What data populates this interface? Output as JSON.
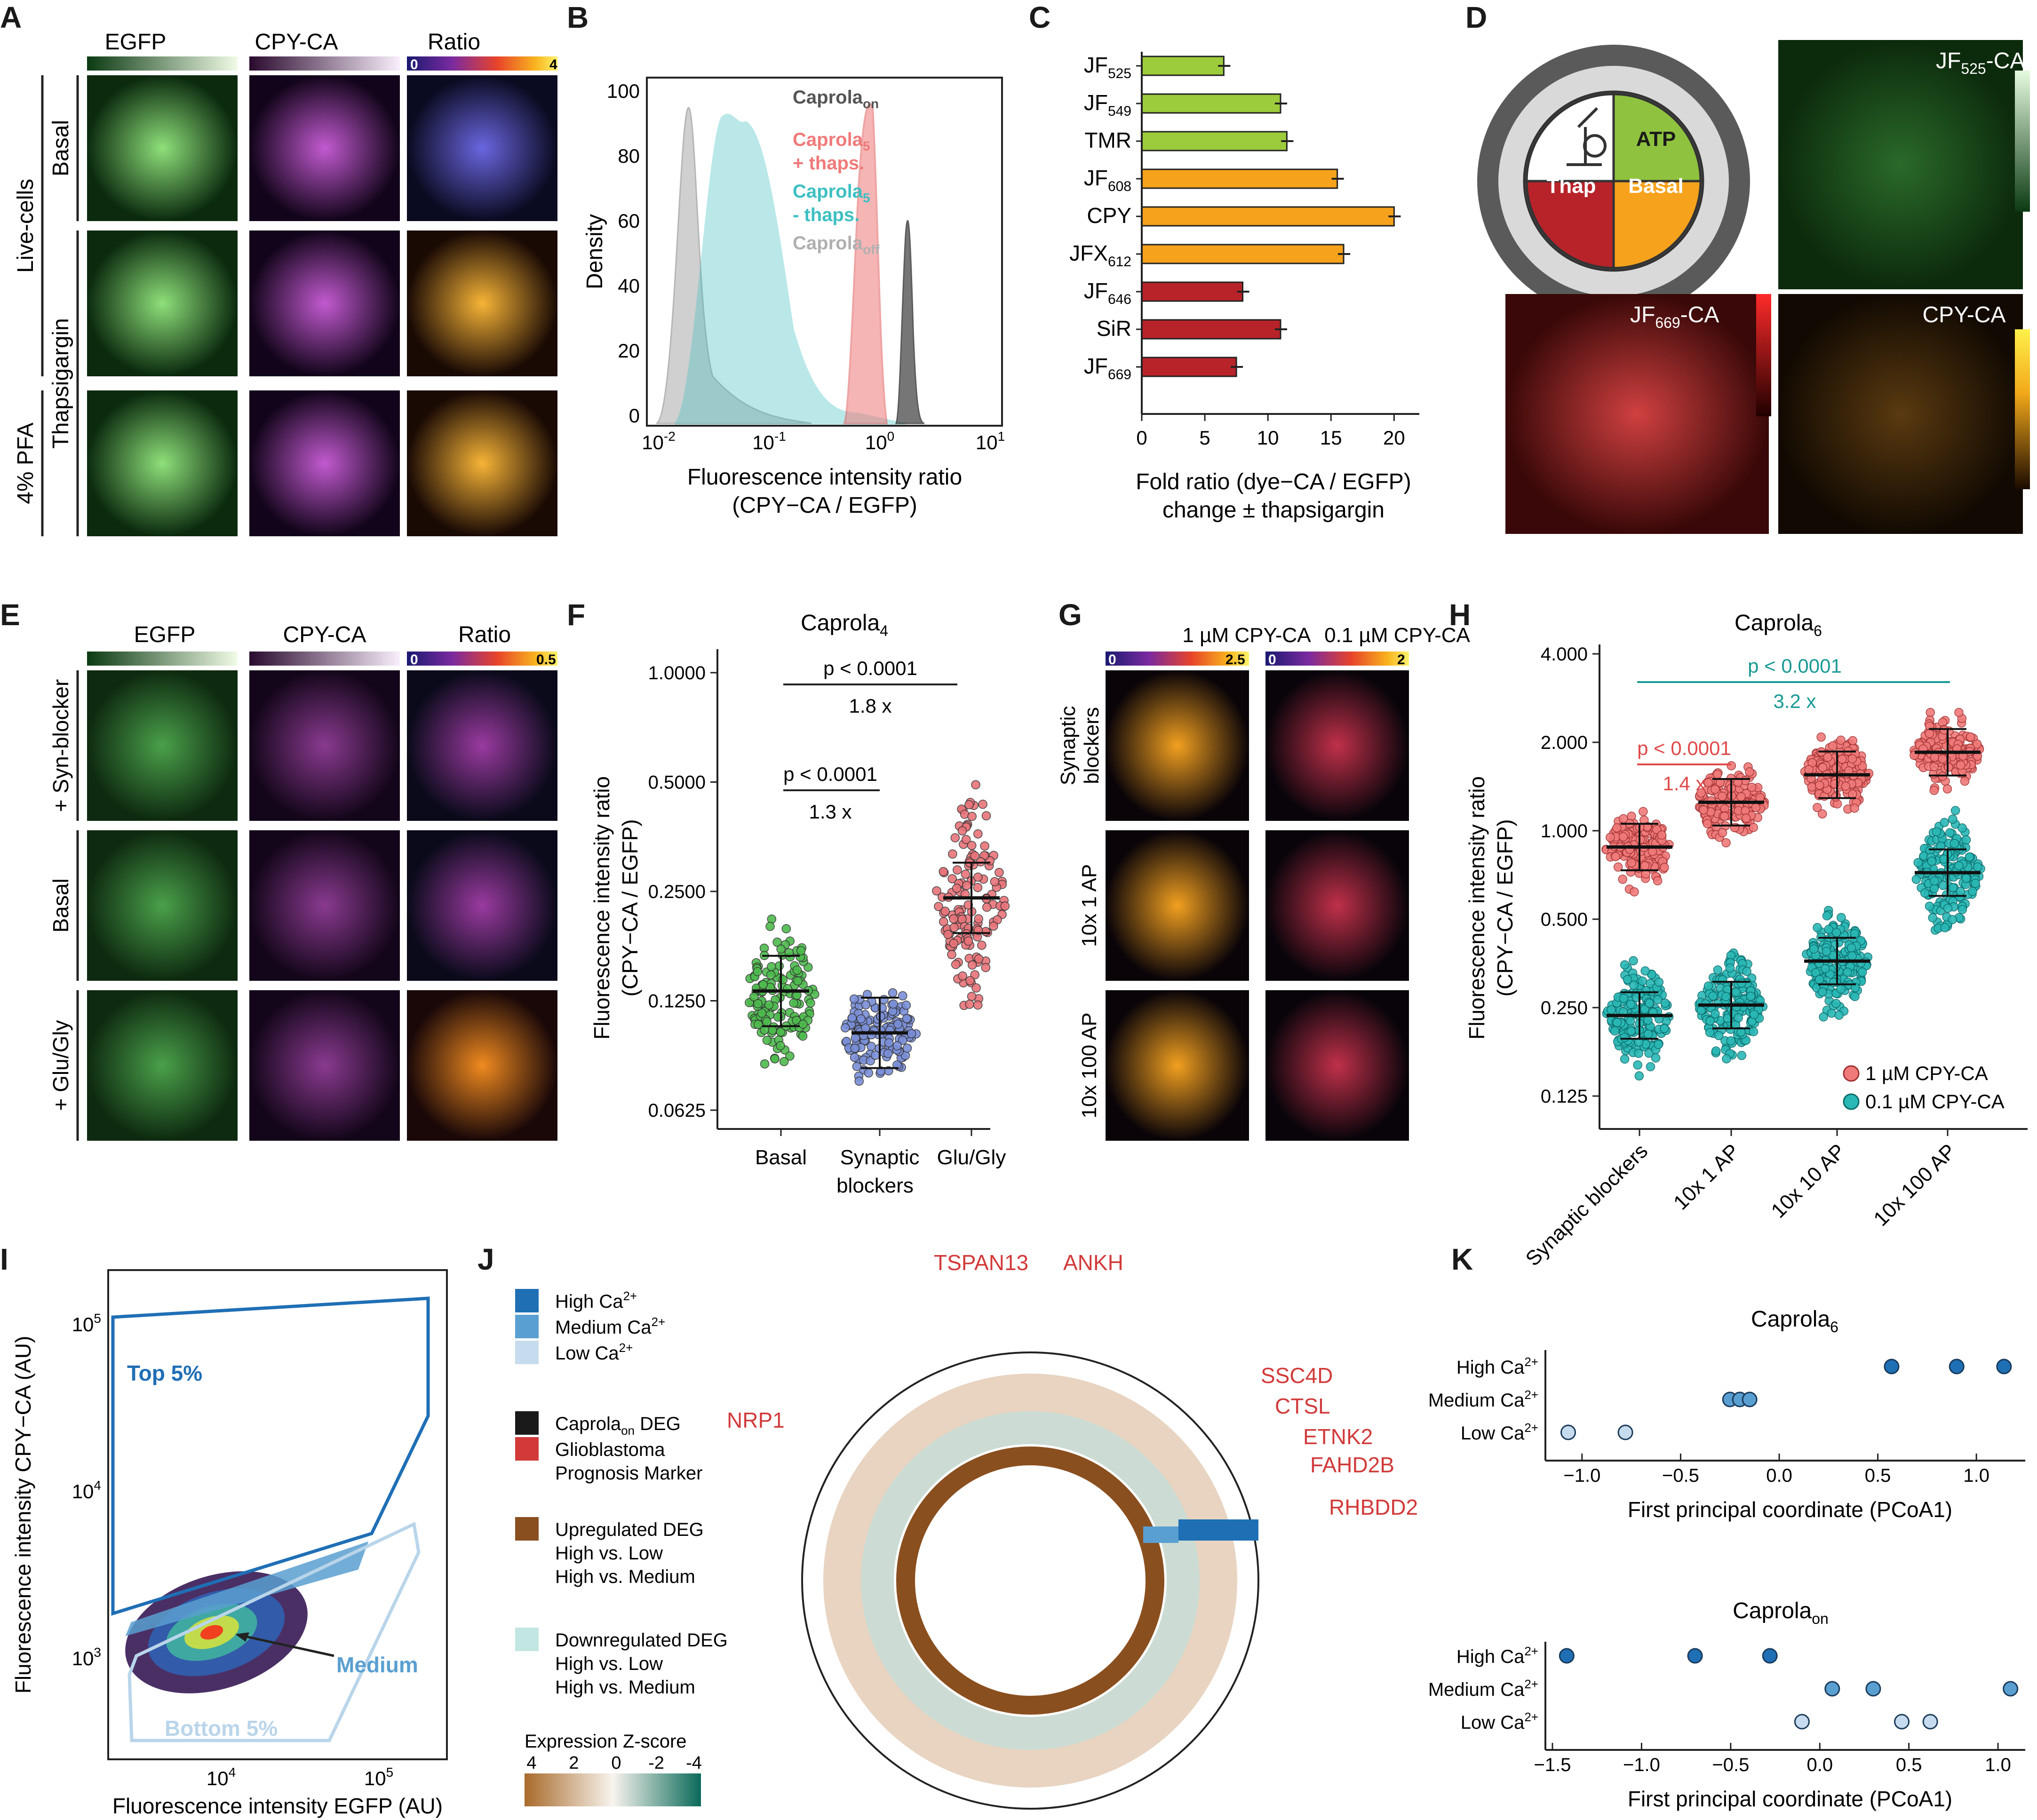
{
  "panels": {
    "A": "A",
    "B": "B",
    "C": "C",
    "D": "D",
    "E": "E",
    "F": "F",
    "G": "G",
    "H": "H",
    "I": "I",
    "J": "J",
    "K": "K"
  },
  "colors": {
    "green": "#7cc143",
    "orange": "#f6a21c",
    "red": "#b8232a",
    "teal": "#3dbfc2",
    "salmon": "#f07a7a",
    "blue": "#1f6fb5",
    "mid_blue": "#5a9fd1",
    "light_blue": "#b9d5ea",
    "brown": "#8a4f1f"
  },
  "panelA": {
    "cols": [
      "EGFP",
      "CPY-CA",
      "Ratio"
    ],
    "group_labels": [
      "Live-cells",
      "4% PFA"
    ],
    "rows": [
      "Basal",
      "Thapsigargin"
    ],
    "cbar_min": "0",
    "cbar_max": "4"
  },
  "panelB": {
    "ylabel": "Density",
    "xlabel1": "Fluorescence intensity ratio",
    "xlabel2": "(CPY−CA / EGFP)",
    "yticks": [
      "0",
      "20",
      "40",
      "60",
      "80",
      "100"
    ],
    "xticks": [
      "10",
      "10",
      "10",
      "10"
    ],
    "xexp": [
      "-2",
      "-1",
      "0",
      "1"
    ],
    "legend": [
      {
        "text": "Caprola",
        "sub": "on",
        "suffix": "",
        "color": "#555555"
      },
      {
        "text": "Caprola",
        "sub": "5",
        "suffix": "+ thaps.",
        "color": "#f07a7a"
      },
      {
        "text": "Caprola",
        "sub": "5",
        "suffix": "- thaps.",
        "color": "#3dbfc2"
      },
      {
        "text": "Caprola",
        "sub": "off",
        "suffix": "",
        "color": "#b0b0b0"
      }
    ]
  },
  "panelC": {
    "xlabel1": "Fold ratio (dye−CA / EGFP)",
    "xlabel2": "change ± thapsigargin",
    "xticks": [
      "0",
      "5",
      "10",
      "15",
      "20"
    ]
  },
  "panelD": {
    "wheel": [
      "ATP",
      "Thap",
      "Basal"
    ],
    "labels": [
      "JF",
      "CA",
      "CPY-CA"
    ],
    "sub525": "525",
    "sub669": "669"
  },
  "panelE": {
    "cols": [
      "EGFP",
      "CPY-CA",
      "Ratio"
    ],
    "rows": [
      "+ Syn-blocker",
      "Basal",
      "+ Glu/Gly"
    ],
    "cbar_min": "0",
    "cbar_max": "0.5"
  },
  "panelF": {
    "title": "Caprola",
    "title_sub": "4",
    "ylabel1": "Fluorescence intensity ratio",
    "ylabel2": "(CPY−CA / EGFP)",
    "yticks": [
      "0.0625",
      "0.1250",
      "0.2500",
      "0.5000",
      "1.0000"
    ],
    "groups": [
      "Basal",
      "Synaptic",
      "Glu/Gly"
    ],
    "group2_line2": "blockers",
    "p1": "p < 0.0001",
    "fc1": "1.8 x",
    "p2": "p < 0.0001",
    "fc2": "1.3 x"
  },
  "panelG": {
    "cols": [
      "1 µM CPY-CA",
      "0.1 µM CPY-CA"
    ],
    "rows": [
      "Synaptic",
      "10x 1 AP",
      "10x 100 AP"
    ],
    "row1_line2": "blockers",
    "cbar1": [
      "0",
      "2.5"
    ],
    "cbar2": [
      "0",
      "2"
    ]
  },
  "panelH": {
    "title": "Caprola",
    "title_sub": "6",
    "ylabel1": "Fluorescence intensity ratio",
    "ylabel2": "(CPY−CA / EGFP)",
    "yticks": [
      "0.125",
      "0.250",
      "0.500",
      "1.000",
      "2.000",
      "4.000"
    ],
    "groups": [
      "Synaptic blockers",
      "10x 1 AP",
      "10x 10 AP",
      "10x 100 AP"
    ],
    "p1": "p < 0.0001",
    "fc1": "3.2 x",
    "p2": "p < 0.0001",
    "fc2": "1.4 x",
    "legend": [
      "1 µM CPY-CA",
      "0.1 µM CPY-CA"
    ]
  },
  "panelI": {
    "ylabel": "Fluorescence intensity CPY−CA (AU)",
    "xlabel": "Fluorescence intensity EGFP (AU)",
    "gates": [
      "Top 5%",
      "Medium",
      "Bottom 5%"
    ],
    "yticks": [
      "10",
      "10",
      "10"
    ],
    "yexp": [
      "3",
      "4",
      "5"
    ],
    "xticks": [
      "10",
      "10"
    ],
    "xexp": [
      "4",
      "5"
    ]
  },
  "panelJ": {
    "legend": [
      "High Ca",
      "Medium Ca",
      "Low Ca",
      "Caprola",
      "DEG",
      "Glioblastoma",
      "Prognosis Marker",
      "Upregulated DEG",
      "High vs. Low",
      "High vs. Medium",
      "Downregulated DEG",
      "High vs. Low",
      "High vs. Medium"
    ],
    "ca_sup": "2+",
    "caprola_sub": "on",
    "zscore_title": "Expression Z-score",
    "zscore_ticks": [
      "4",
      "2",
      "0",
      "-2",
      "-4"
    ],
    "genes": [
      "TSPAN13",
      "ANKH",
      "SSC4D",
      "CTSL",
      "ETNK2",
      "FAHD2B",
      "RHBDD2",
      "NRP1"
    ]
  },
  "panelK": {
    "title1": "Caprola",
    "title1_sub": "6",
    "title2": "Caprola",
    "title2_sub": "on",
    "rows": [
      "High Ca",
      "Medium Ca",
      "Low Ca"
    ],
    "sup": "2+",
    "xlabel": "First principal coordinate (PCoA1)",
    "xticks1": [
      "-1.0",
      "-0.5",
      "0.0",
      "0.5",
      "1.0"
    ],
    "xticks2": [
      "-1.5",
      "-1.0",
      "-0.5",
      "0.0",
      "0.5",
      "1.0"
    ]
  },
  "chart_data": [
    {
      "type": "bar",
      "categories": [
        "JF525",
        "JF549",
        "TMR",
        "JF608",
        "CPY",
        "JFX612",
        "JF646",
        "SiR",
        "JF669"
      ],
      "values": [
        6.5,
        11,
        11.5,
        15.5,
        20,
        16,
        8,
        11,
        7.5
      ],
      "xlim": [
        0,
        22
      ]
    },
    {
      "type": "scatter",
      "categories": [
        "Basal",
        "Synaptic blockers",
        "Glu/Gly"
      ],
      "medians": [
        0.133,
        0.102,
        0.24
      ],
      "ylim": [
        0.0625,
        1.0
      ]
    },
    {
      "type": "scatter",
      "categories": [
        "Synaptic blockers",
        "10x 1 AP",
        "10x 10 AP",
        "10x 100 AP"
      ],
      "series": [
        {
          "name": "1 µM CPY-CA",
          "medians": [
            0.88,
            1.25,
            1.55,
            1.85
          ]
        },
        {
          "name": "0.1 µM CPY-CA",
          "medians": [
            0.235,
            0.255,
            0.36,
            0.72
          ]
        }
      ],
      "ylim": [
        0.125,
        4.0
      ]
    },
    {
      "type": "scatter",
      "title": "Caprola6",
      "series": [
        {
          "name": "High Ca2+",
          "x": [
            0.57,
            0.9,
            1.14
          ]
        },
        {
          "name": "Medium Ca2+",
          "x": [
            -0.25,
            -0.2,
            -0.15
          ]
        },
        {
          "name": "Low Ca2+",
          "x": [
            -1.07,
            -0.78
          ]
        }
      ],
      "xlim": [
        -1.15,
        1.2
      ]
    },
    {
      "type": "scatter",
      "title": "Caprolaon",
      "series": [
        {
          "name": "High Ca2+",
          "x": [
            -1.42,
            -0.7,
            -0.28
          ]
        },
        {
          "name": "Medium Ca2+",
          "x": [
            0.07,
            0.3,
            1.07
          ]
        },
        {
          "name": "Low Ca2+",
          "x": [
            -0.1,
            0.46,
            0.62
          ]
        }
      ],
      "xlim": [
        -1.5,
        1.1
      ]
    }
  ]
}
